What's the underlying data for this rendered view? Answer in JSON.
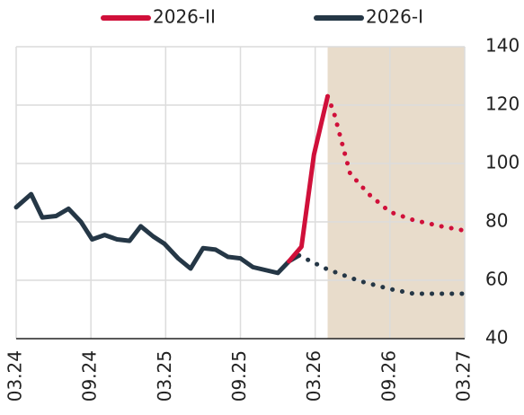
{
  "chart_data": {
    "type": "line",
    "xlim": [
      0,
      36
    ],
    "xticks": [
      {
        "value": 0,
        "label": "03.24"
      },
      {
        "value": 6,
        "label": "09.24"
      },
      {
        "value": 12,
        "label": "03.25"
      },
      {
        "value": 18,
        "label": "09.25"
      },
      {
        "value": 24,
        "label": "03.26"
      },
      {
        "value": 30,
        "label": "09.26"
      },
      {
        "value": 36,
        "label": "03.27"
      }
    ],
    "ylim": [
      40,
      140
    ],
    "yticks": [
      40,
      60,
      80,
      100,
      120,
      140
    ],
    "grid": true,
    "shaded_range": [
      25,
      36
    ],
    "shaded_color": "#e8dccb",
    "series": [
      {
        "name": "2026-II",
        "color": "#d0103a",
        "segments": [
          {
            "style": "solid",
            "x": [
              21.9,
              22.9,
              23.9,
              25
            ],
            "values": [
              66.5,
              71.5,
              103,
              123
            ]
          },
          {
            "style": "dotted",
            "x": [
              25,
              25.5,
              26.8,
              28.3,
              30,
              31.9,
              34.1,
              36
            ],
            "values": [
              123,
              117.5,
              96.6,
              89.5,
              83.4,
              80.6,
              78.5,
              77
            ]
          }
        ]
      },
      {
        "name": "2026-I",
        "color": "#253746",
        "segments": [
          {
            "style": "solid",
            "x": [
              0,
              1.2,
              2.1,
              3.2,
              4.2,
              5.2,
              6.1,
              7.1,
              8.1,
              9.1,
              10,
              11,
              11.9,
              13,
              14,
              15,
              16,
              17,
              18,
              19,
              20,
              21,
              21.9,
              22.7
            ],
            "values": [
              85,
              89.5,
              81.5,
              82,
              84.5,
              80,
              74,
              75.5,
              74,
              73.5,
              78.5,
              75,
              72.5,
              67.5,
              64,
              71,
              70.5,
              68,
              67.5,
              64.5,
              63.5,
              62.5,
              66.5,
              68.5
            ]
          },
          {
            "style": "dotted",
            "x": [
              22.7,
              25,
              27.6,
              30,
              31.9,
              36
            ],
            "values": [
              68.5,
              63.7,
              59.7,
              57,
              55.4,
              55.4
            ]
          }
        ]
      }
    ]
  }
}
